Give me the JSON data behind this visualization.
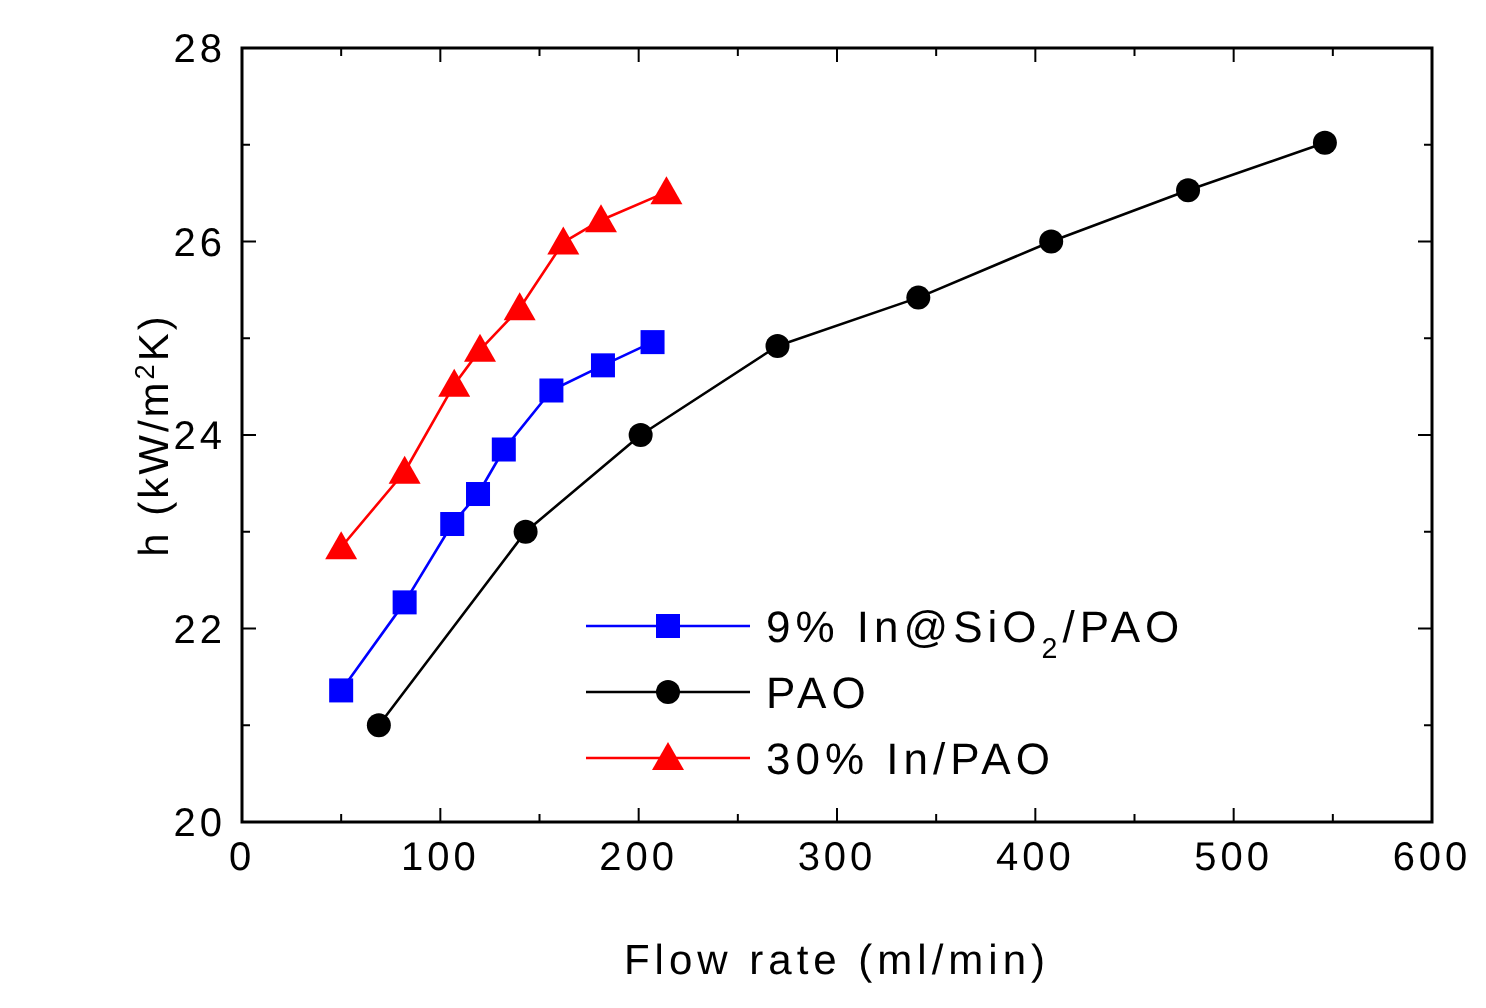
{
  "chart_data": {
    "type": "line",
    "xlabel": "Flow rate (ml/min)",
    "ylabel": "h (kW/m$^{2}$K)",
    "xlim": [
      0,
      600
    ],
    "ylim": [
      20,
      28
    ],
    "xticks": [
      0,
      {
        "value": 50,
        "label": null
      },
      100,
      {
        "value": 150,
        "label": null
      },
      200,
      {
        "value": 250,
        "label": null
      },
      300,
      {
        "value": 350,
        "label": null
      },
      400,
      {
        "value": 450,
        "label": null
      },
      500,
      {
        "value": 550,
        "label": null
      },
      600
    ],
    "yticks": [
      20,
      {
        "value": 21,
        "label": null
      },
      22,
      {
        "value": 23,
        "label": null
      },
      24,
      {
        "value": 25,
        "label": null
      },
      26,
      {
        "value": 27,
        "label": null
      },
      28
    ],
    "legend": "bottom",
    "grid": false,
    "line_style": "solid",
    "series": [
      {
        "name": "9% In@SiO$_{2}$/PAO",
        "color": "#0000ff",
        "marker": "square",
        "x": [
          50,
          82,
          106,
          119,
          132,
          156,
          182,
          207
        ],
        "values": [
          21.36,
          22.27,
          23.08,
          23.39,
          23.85,
          24.46,
          24.72,
          24.96
        ]
      },
      {
        "name": "PAO",
        "color": "#000000",
        "marker": "circle",
        "x": [
          69,
          143,
          201,
          270,
          341,
          408,
          477,
          546
        ],
        "values": [
          21.0,
          23.0,
          24.0,
          24.92,
          25.42,
          26.0,
          26.53,
          27.02
        ]
      },
      {
        "name": "30% In/PAO",
        "color": "#ff0000",
        "marker": "triangle",
        "x": [
          50,
          82,
          107,
          120,
          140,
          162,
          181,
          214
        ],
        "values": [
          22.84,
          23.62,
          24.52,
          24.88,
          25.31,
          25.99,
          26.22,
          26.51
        ]
      }
    ]
  }
}
